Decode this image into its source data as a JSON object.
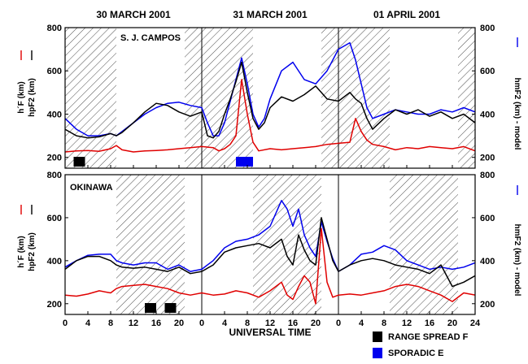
{
  "colors": {
    "hF": "#e00000",
    "hpF2": "#000000",
    "model": "#0000ee",
    "hatch": "#000000"
  },
  "chart_data": {
    "type": "line",
    "xlabel": "UNIVERSAL TIME",
    "x_ticks": [
      "0",
      "4",
      "8",
      "12",
      "16",
      "20",
      "0",
      "4",
      "8",
      "12",
      "16",
      "20",
      "0",
      "4",
      "8",
      "12",
      "16",
      "20",
      "24"
    ],
    "y_ticks": [
      "200",
      "400",
      "600",
      "800"
    ],
    "y_ticks_right": [
      "200",
      "400",
      "600",
      "800"
    ],
    "ylim": [
      150,
      800
    ],
    "days": [
      "30 MARCH 2001",
      "31 MARCH 2001",
      "01 APRIL 2001"
    ],
    "legend": {
      "spread_f": "RANGE SPREAD F",
      "sporadic_e": "SPORADIC E"
    },
    "left_labels": {
      "hF": "h´F (km)",
      "hpF2": "hpF2 (km)"
    },
    "right_label": "hmF2 (km) - model",
    "panels": [
      {
        "station": "S. J. CAMPOS",
        "night_intervals": [
          [
            0,
            9
          ],
          [
            21,
            33
          ],
          [
            45,
            57
          ],
          [
            69,
            72
          ]
        ],
        "spread_f": [
          [
            1.5,
            3.5
          ]
        ],
        "sporadic_e": [
          [
            30,
            33
          ]
        ],
        "series": [
          {
            "name": "h'F",
            "x": [
              0,
              2,
              4,
              6,
              8,
              9,
              10,
              12,
              14,
              16,
              18,
              20,
              22,
              24,
              26,
              27,
              28,
              29,
              30,
              31,
              32,
              33,
              34,
              36,
              38,
              40,
              42,
              44,
              46,
              48,
              50,
              51,
              52,
              53,
              54,
              56,
              58,
              60,
              62,
              64,
              66,
              68,
              70,
              72
            ],
            "y": [
              225,
              230,
              232,
              228,
              240,
              255,
              235,
              225,
              230,
              232,
              235,
              240,
              245,
              250,
              245,
              230,
              240,
              260,
              300,
              560,
              400,
              270,
              230,
              240,
              235,
              240,
              245,
              250,
              260,
              265,
              270,
              380,
              320,
              280,
              260,
              250,
              235,
              245,
              240,
              250,
              245,
              240,
              250,
              230
            ]
          },
          {
            "name": "hpF2",
            "x": [
              0,
              2,
              4,
              6,
              8,
              9,
              10,
              12,
              14,
              16,
              18,
              20,
              22,
              24,
              25,
              26,
              27,
              28,
              29,
              30,
              31,
              32,
              33,
              34,
              35,
              36,
              38,
              40,
              42,
              44,
              46,
              48,
              50,
              51,
              52,
              53,
              54,
              56,
              58,
              60,
              62,
              64,
              66,
              68,
              70,
              72
            ],
            "y": [
              330,
              300,
              290,
              295,
              310,
              300,
              315,
              360,
              410,
              450,
              440,
              410,
              390,
              410,
              300,
              290,
              320,
              400,
              470,
              550,
              640,
              500,
              380,
              330,
              360,
              430,
              480,
              460,
              490,
              530,
              470,
              460,
              500,
              470,
              450,
              380,
              330,
              380,
              420,
              400,
              420,
              390,
              410,
              380,
              400,
              360
            ]
          },
          {
            "name": "hmF2 model",
            "x": [
              0,
              2,
              4,
              6,
              8,
              9,
              10,
              12,
              14,
              16,
              18,
              20,
              22,
              24,
              25,
              26,
              27,
              28,
              29,
              30,
              31,
              32,
              33,
              34,
              35,
              36,
              38,
              40,
              42,
              44,
              46,
              48,
              50,
              51,
              52,
              53,
              54,
              56,
              58,
              60,
              62,
              64,
              66,
              68,
              70,
              72
            ],
            "y": [
              380,
              330,
              300,
              300,
              310,
              300,
              320,
              360,
              400,
              430,
              450,
              455,
              440,
              430,
              360,
              300,
              300,
              360,
              460,
              560,
              660,
              540,
              400,
              340,
              380,
              470,
              600,
              640,
              560,
              540,
              600,
              700,
              730,
              650,
              540,
              430,
              380,
              400,
              420,
              410,
              400,
              400,
              420,
              410,
              430,
              410
            ]
          }
        ]
      },
      {
        "station": "OKINAWA",
        "night_intervals": [
          [
            9,
            21
          ],
          [
            33,
            45
          ],
          [
            57,
            69
          ]
        ],
        "spread_f": [
          [
            14,
            16
          ],
          [
            17.5,
            19.5
          ]
        ],
        "sporadic_e": [],
        "series": [
          {
            "name": "h'F",
            "x": [
              0,
              2,
              4,
              6,
              8,
              9,
              10,
              12,
              14,
              16,
              18,
              20,
              22,
              24,
              26,
              28,
              30,
              32,
              34,
              36,
              38,
              39,
              40,
              41,
              42,
              43,
              44,
              45,
              46,
              47,
              48,
              50,
              52,
              54,
              56,
              58,
              60,
              62,
              64,
              66,
              68,
              70,
              72
            ],
            "y": [
              240,
              235,
              245,
              260,
              250,
              270,
              280,
              285,
              290,
              280,
              270,
              250,
              240,
              250,
              240,
              245,
              260,
              250,
              230,
              260,
              300,
              240,
              220,
              280,
              330,
              300,
              200,
              550,
              300,
              230,
              240,
              245,
              240,
              250,
              260,
              280,
              290,
              280,
              260,
              240,
              210,
              250,
              240
            ]
          },
          {
            "name": "hpF2",
            "x": [
              0,
              2,
              4,
              6,
              8,
              9,
              10,
              12,
              14,
              16,
              18,
              20,
              22,
              24,
              26,
              28,
              30,
              32,
              34,
              36,
              38,
              39,
              40,
              41,
              42,
              43,
              44,
              45,
              46,
              47,
              48,
              50,
              52,
              54,
              56,
              58,
              60,
              62,
              64,
              66,
              68,
              70,
              72
            ],
            "y": [
              360,
              400,
              420,
              420,
              400,
              380,
              370,
              365,
              370,
              360,
              350,
              370,
              340,
              350,
              380,
              440,
              460,
              470,
              480,
              460,
              500,
              420,
              380,
              520,
              450,
              400,
              380,
              600,
              500,
              400,
              350,
              380,
              400,
              410,
              400,
              380,
              370,
              360,
              340,
              380,
              280,
              300,
              330
            ]
          },
          {
            "name": "hmF2 model",
            "x": [
              0,
              2,
              4,
              6,
              8,
              9,
              10,
              12,
              14,
              16,
              18,
              20,
              22,
              24,
              26,
              28,
              30,
              32,
              34,
              36,
              38,
              39,
              40,
              41,
              42,
              43,
              44,
              45,
              46,
              47,
              48,
              50,
              52,
              54,
              56,
              58,
              60,
              62,
              64,
              66,
              68,
              70,
              72
            ],
            "y": [
              370,
              400,
              425,
              430,
              430,
              400,
              390,
              380,
              390,
              390,
              360,
              380,
              350,
              360,
              400,
              460,
              490,
              500,
              520,
              560,
              680,
              640,
              560,
              640,
              520,
              460,
              420,
              580,
              490,
              410,
              350,
              380,
              430,
              440,
              470,
              450,
              400,
              380,
              360,
              370,
              360,
              370,
              390
            ]
          }
        ]
      }
    ]
  }
}
